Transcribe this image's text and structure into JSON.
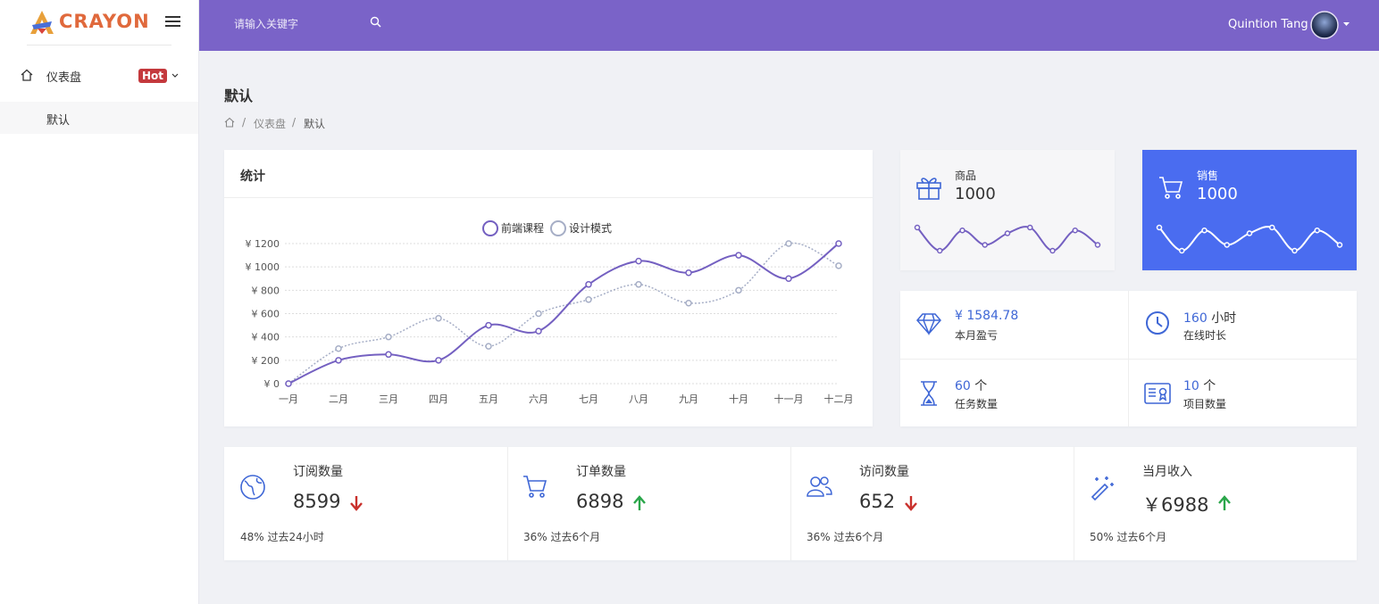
{
  "sidebar": {
    "logo": "CRAYON",
    "menu": [
      {
        "label": "仪表盘",
        "badge": "Hot",
        "children": [
          "默认"
        ]
      }
    ]
  },
  "header": {
    "search_placeholder": "请输入关键字",
    "user_name": "Quintion Tang"
  },
  "page": {
    "title": "默认",
    "breadcrumb": [
      "仪表盘",
      "默认"
    ]
  },
  "chart_data": [
    {
      "type": "line",
      "title": "统计",
      "categories": [
        "一月",
        "二月",
        "三月",
        "四月",
        "五月",
        "六月",
        "七月",
        "八月",
        "九月",
        "十月",
        "十一月",
        "十二月"
      ],
      "series": [
        {
          "name": "前端课程",
          "color": "#7460c1",
          "style": "solid",
          "values": [
            0,
            200,
            250,
            200,
            500,
            450,
            850,
            1050,
            950,
            1100,
            900,
            1200
          ]
        },
        {
          "name": "设计模式",
          "color": "#a6aec6",
          "style": "dotted",
          "values": [
            0,
            300,
            400,
            560,
            320,
            600,
            720,
            850,
            690,
            800,
            1200,
            1010
          ]
        }
      ],
      "ylim": [
        0,
        1200
      ],
      "yticks": [
        {
          "value": 0,
          "label": "¥ 0"
        },
        {
          "value": 200,
          "label": "¥ 200"
        },
        {
          "value": 400,
          "label": "¥ 400"
        },
        {
          "value": 600,
          "label": "¥ 600"
        },
        {
          "value": 800,
          "label": "¥ 800"
        },
        {
          "value": 1000,
          "label": "¥ 1000"
        },
        {
          "value": 1200,
          "label": "¥ 1200"
        }
      ],
      "grid": true,
      "smooth": true
    },
    {
      "type": "line",
      "color": "#7460c1",
      "values": [
        50,
        10,
        45,
        20,
        40,
        50,
        10,
        45,
        20
      ]
    },
    {
      "type": "line",
      "color": "#ffffff",
      "values": [
        50,
        10,
        45,
        20,
        40,
        50,
        10,
        45,
        20
      ]
    }
  ],
  "cards": [
    {
      "label": "商品",
      "value": 1000
    },
    {
      "label": "销售",
      "value": 1000
    }
  ],
  "stats": [
    {
      "value": "¥ 1584.78",
      "label": "本月盈亏"
    },
    {
      "value": 160,
      "unit": "小时",
      "label": "在线时长"
    },
    {
      "value": 60,
      "unit": "个",
      "label": "任务数量"
    },
    {
      "value": 10,
      "unit": "个",
      "label": "项目数量"
    }
  ],
  "summary": [
    {
      "label": "订阅数量",
      "value": 8599,
      "trend": "down",
      "percent": "48%",
      "period": "过去24小时"
    },
    {
      "label": "订单数量",
      "value": 6898,
      "trend": "up",
      "percent": "36%",
      "period": "过去6个月"
    },
    {
      "label": "访问数量",
      "value": 652,
      "trend": "down",
      "percent": "36%",
      "period": "过去6个月"
    },
    {
      "label": "当月收入",
      "value": "￥6988",
      "trend": "up",
      "percent": "50%",
      "period": "过去6个月"
    }
  ]
}
